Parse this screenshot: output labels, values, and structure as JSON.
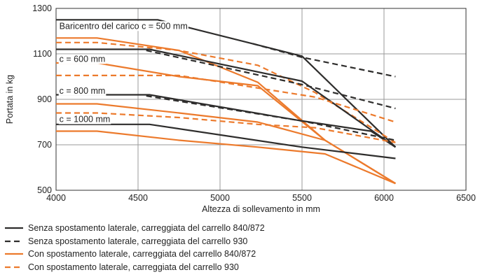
{
  "chart_data": {
    "type": "line",
    "xlabel": "Altezza di sollevamento in mm",
    "ylabel": "Portata in kg",
    "xlim": [
      4000,
      6500
    ],
    "ylim": [
      500,
      1300
    ],
    "xticks": [
      "4000",
      "4500",
      "5000",
      "5500",
      "6000",
      "6500"
    ],
    "yticks": [
      "500",
      "700",
      "900",
      "1100",
      "1300"
    ],
    "grid": true,
    "legend_position": "bottom",
    "colors": {
      "dark": "#2e2d2c",
      "orange": "#ec7a2c"
    },
    "annotations": [
      {
        "text": "Baricentro del carico c = 500 mm",
        "x": 4020,
        "y": 1210
      },
      {
        "text": "c = 600 mm",
        "x": 4020,
        "y": 1065
      },
      {
        "text": "c = 800 mm",
        "x": 4020,
        "y": 925
      },
      {
        "text": "c = 1000 mm",
        "x": 4020,
        "y": 800
      }
    ],
    "legend": [
      {
        "label": "Senza spostamento laterale, carreggiata del carrello 840/872",
        "color": "#2e2d2c",
        "dash": false
      },
      {
        "label": "Senza spostamento laterale, carreggiata del carrello 930",
        "color": "#2e2d2c",
        "dash": true
      },
      {
        "label": "Con spostamento laterale, carreggiata del carrello 840/872",
        "color": "#ec7a2c",
        "dash": false
      },
      {
        "label": "Con spostamento laterale, carreggiata del carrello 930",
        "color": "#ec7a2c",
        "dash": true
      }
    ],
    "series": [
      {
        "legend_index": 0,
        "group": "c = 500 mm",
        "x": [
          4000,
          4620,
          5500,
          6070
        ],
        "y": [
          1250,
          1250,
          1090,
          690
        ]
      },
      {
        "legend_index": 1,
        "group": "c = 500 mm",
        "x": [
          5200,
          5500,
          6070
        ],
        "y": [
          1145,
          1085,
          1000
        ]
      },
      {
        "legend_index": 2,
        "group": "c = 500 mm",
        "x": [
          4000,
          4250,
          4750,
          5230,
          5640,
          6070
        ],
        "y": [
          1170,
          1170,
          1115,
          975,
          720,
          530
        ]
      },
      {
        "legend_index": 3,
        "group": "c = 500 mm",
        "x": [
          4000,
          4250,
          4750,
          5230,
          5580,
          6070
        ],
        "y": [
          1150,
          1150,
          1115,
          1050,
          930,
          710
        ]
      },
      {
        "legend_index": 0,
        "group": "c = 600 mm",
        "x": [
          4000,
          4570,
          5500,
          6070
        ],
        "y": [
          1120,
          1120,
          980,
          690
        ]
      },
      {
        "legend_index": 1,
        "group": "c = 600 mm",
        "x": [
          4550,
          5500,
          6070
        ],
        "y": [
          1115,
          965,
          860
        ]
      },
      {
        "legend_index": 2,
        "group": "c = 600 mm",
        "x": [
          4000,
          4250,
          4750,
          5230,
          5640,
          6070
        ],
        "y": [
          1060,
          1060,
          1000,
          960,
          720,
          530
        ]
      },
      {
        "legend_index": 3,
        "group": "c = 600 mm",
        "x": [
          4000,
          4250,
          4750,
          5230,
          5580,
          6070
        ],
        "y": [
          1005,
          1005,
          1005,
          950,
          910,
          800
        ]
      },
      {
        "legend_index": 0,
        "group": "c = 800 mm",
        "x": [
          4000,
          4570,
          5500,
          5920,
          6070
        ],
        "y": [
          920,
          920,
          805,
          760,
          690
        ]
      },
      {
        "legend_index": 1,
        "group": "c = 800 mm",
        "x": [
          4550,
          5500,
          6070
        ],
        "y": [
          915,
          805,
          720
        ]
      },
      {
        "legend_index": 2,
        "group": "c = 800 mm",
        "x": [
          4000,
          4250,
          4750,
          5230,
          5640,
          6070
        ],
        "y": [
          880,
          880,
          840,
          800,
          720,
          530
        ]
      },
      {
        "legend_index": 3,
        "group": "c = 800 mm",
        "x": [
          4000,
          4250,
          4750,
          5230,
          5580,
          6070
        ],
        "y": [
          840,
          840,
          820,
          790,
          775,
          710
        ]
      },
      {
        "legend_index": 0,
        "group": "c = 1000 mm",
        "x": [
          4000,
          4570,
          5500,
          6070
        ],
        "y": [
          790,
          790,
          690,
          640
        ]
      },
      {
        "legend_index": 2,
        "group": "c = 1000 mm",
        "x": [
          4000,
          4250,
          4750,
          5230,
          5640,
          6070
        ],
        "y": [
          760,
          760,
          720,
          690,
          660,
          530
        ]
      }
    ]
  }
}
